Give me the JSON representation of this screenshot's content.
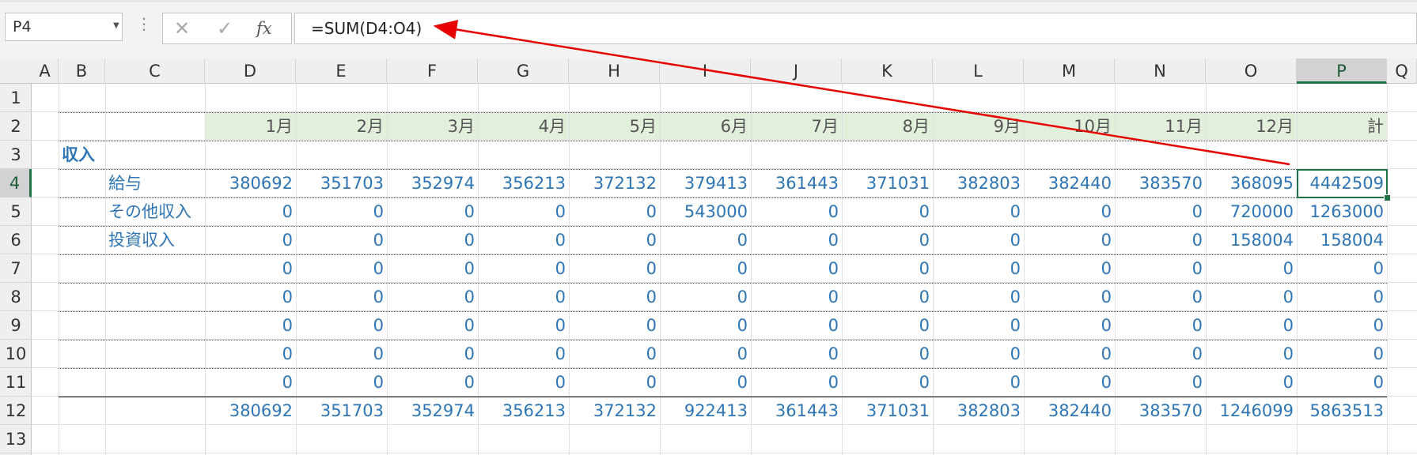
{
  "name_box": {
    "value": "P4"
  },
  "formula_bar": {
    "cancel_glyph": "✕",
    "enter_glyph": "✓",
    "fx_label": "fx",
    "formula": "=SUM(D4:O4)"
  },
  "columns": [
    "A",
    "B",
    "C",
    "D",
    "E",
    "F",
    "G",
    "H",
    "I",
    "J",
    "K",
    "L",
    "M",
    "N",
    "O",
    "P",
    "Q"
  ],
  "rows": [
    "1",
    "2",
    "3",
    "4",
    "5",
    "6",
    "7",
    "8",
    "9",
    "10",
    "11",
    "12",
    "13"
  ],
  "selected_cell": {
    "column": "P",
    "row": "4"
  },
  "sheet": {
    "months": [
      "1月",
      "2月",
      "3月",
      "4月",
      "5月",
      "6月",
      "7月",
      "8月",
      "9月",
      "10月",
      "11月",
      "12月",
      "計"
    ],
    "section_label": "収入",
    "income_rows": [
      {
        "label": "給与",
        "values": [
          "380692",
          "351703",
          "352974",
          "356213",
          "372132",
          "379413",
          "361443",
          "371031",
          "382803",
          "382440",
          "383570",
          "368095",
          "4442509"
        ]
      },
      {
        "label": "その他収入",
        "values": [
          "0",
          "0",
          "0",
          "0",
          "0",
          "543000",
          "0",
          "0",
          "0",
          "0",
          "0",
          "720000",
          "1263000"
        ]
      },
      {
        "label": "投資収入",
        "values": [
          "0",
          "0",
          "0",
          "0",
          "0",
          "0",
          "0",
          "0",
          "0",
          "0",
          "0",
          "158004",
          "158004"
        ]
      },
      {
        "label": "",
        "values": [
          "0",
          "0",
          "0",
          "0",
          "0",
          "0",
          "0",
          "0",
          "0",
          "0",
          "0",
          "0",
          "0"
        ]
      },
      {
        "label": "",
        "values": [
          "0",
          "0",
          "0",
          "0",
          "0",
          "0",
          "0",
          "0",
          "0",
          "0",
          "0",
          "0",
          "0"
        ]
      },
      {
        "label": "",
        "values": [
          "0",
          "0",
          "0",
          "0",
          "0",
          "0",
          "0",
          "0",
          "0",
          "0",
          "0",
          "0",
          "0"
        ]
      },
      {
        "label": "",
        "values": [
          "0",
          "0",
          "0",
          "0",
          "0",
          "0",
          "0",
          "0",
          "0",
          "0",
          "0",
          "0",
          "0"
        ]
      },
      {
        "label": "",
        "values": [
          "0",
          "0",
          "0",
          "0",
          "0",
          "0",
          "0",
          "0",
          "0",
          "0",
          "0",
          "0",
          "0"
        ]
      }
    ],
    "totals": [
      "380692",
      "351703",
      "352974",
      "356213",
      "372132",
      "922413",
      "361443",
      "371031",
      "382803",
      "382440",
      "383570",
      "1246099",
      "5863513"
    ]
  },
  "colors": {
    "accent": "#217346",
    "value_blue": "#2e75b6",
    "month_band": "#e2efda",
    "annotation_arrow": "#e60000"
  }
}
